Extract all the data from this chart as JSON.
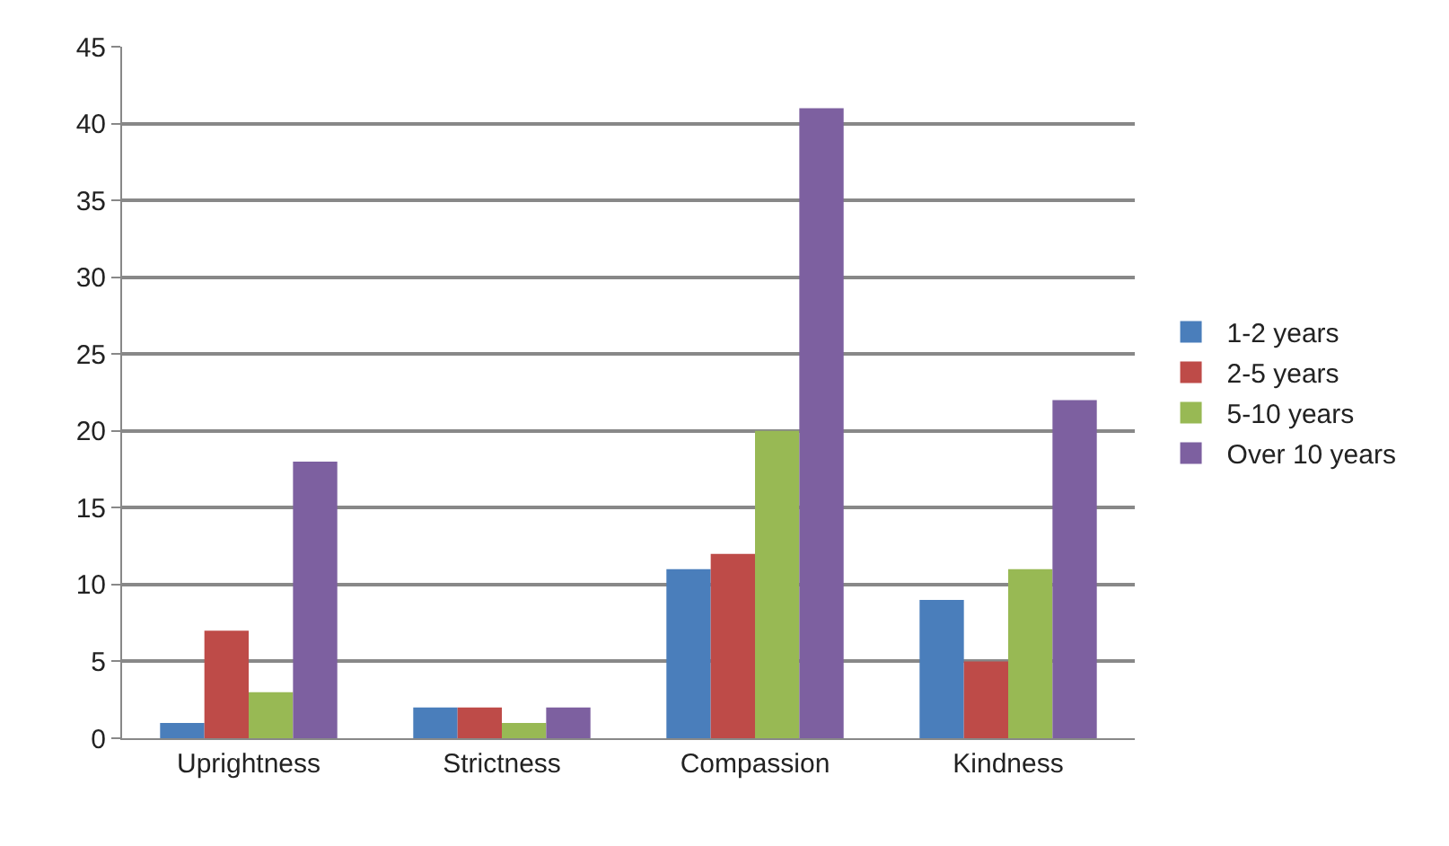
{
  "chart_data": {
    "type": "bar",
    "categories": [
      "Uprightness",
      "Strictness",
      "Compassion",
      "Kindness"
    ],
    "series": [
      {
        "name": "1-2 years",
        "color": "#4a7ebb",
        "values": [
          1,
          2,
          11,
          9
        ]
      },
      {
        "name": "2-5 years",
        "color": "#be4b48",
        "values": [
          7,
          2,
          12,
          5
        ]
      },
      {
        "name": "5-10 years",
        "color": "#98b954",
        "values": [
          3,
          1,
          20,
          11
        ]
      },
      {
        "name": "Over 10 years",
        "color": "#7d60a0",
        "values": [
          18,
          2,
          41,
          22
        ]
      }
    ],
    "ylim": [
      0,
      45
    ],
    "yticks": [
      0,
      5,
      10,
      15,
      20,
      25,
      30,
      35,
      40,
      45
    ],
    "grid": "y",
    "legend": "right"
  }
}
